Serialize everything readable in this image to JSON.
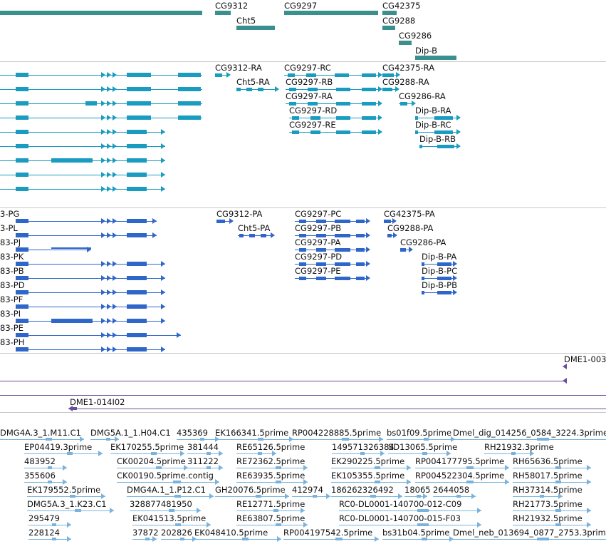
{
  "colors": {
    "gene": "#3a8f8f",
    "transcript": "#1a9cc0",
    "protein": "#2f66c9",
    "clone": "#6a4c9c",
    "est": "#79b3dd",
    "separator": "#c8c8c8"
  },
  "tracks": {
    "genes": {
      "items": [
        {
          "label": "CG9312"
        },
        {
          "label": "Cht5"
        },
        {
          "label": "CG9297"
        },
        {
          "label": "CG42375"
        },
        {
          "label": "CG9288"
        },
        {
          "label": "CG9286"
        },
        {
          "label": "Dip-B"
        }
      ]
    },
    "transcripts": {
      "items": [
        {
          "label": "CG9312-RA"
        },
        {
          "label": "Cht5-RA"
        },
        {
          "label": "CG9297-RC"
        },
        {
          "label": "CG9297-RB"
        },
        {
          "label": "CG9297-RA"
        },
        {
          "label": "CG9297-RD"
        },
        {
          "label": "CG9297-RE"
        },
        {
          "label": "CG42375-RA"
        },
        {
          "label": "CG9288-RA"
        },
        {
          "label": "CG9286-RA"
        },
        {
          "label": "Dip-B-RA"
        },
        {
          "label": "Dip-B-RC"
        },
        {
          "label": "Dip-B-RB"
        }
      ]
    },
    "proteins": {
      "items": [
        {
          "label": "3-PG"
        },
        {
          "label": "3-PL"
        },
        {
          "label": "83-PJ"
        },
        {
          "label": "83-PK"
        },
        {
          "label": "83-PB"
        },
        {
          "label": "83-PD"
        },
        {
          "label": "83-PF"
        },
        {
          "label": "83-PI"
        },
        {
          "label": "83-PE"
        },
        {
          "label": "83-PH"
        },
        {
          "label": "CG9312-PA"
        },
        {
          "label": "Cht5-PA"
        },
        {
          "label": "CG9297-PC"
        },
        {
          "label": "CG9297-PB"
        },
        {
          "label": "CG9297-PA"
        },
        {
          "label": "CG9297-PD"
        },
        {
          "label": "CG9297-PE"
        },
        {
          "label": "CG42375-PA"
        },
        {
          "label": "CG9288-PA"
        },
        {
          "label": "CG9286-PA"
        },
        {
          "label": "Dip-B-PA"
        },
        {
          "label": "Dip-B-PC"
        },
        {
          "label": "Dip-B-PB"
        }
      ]
    },
    "clones": {
      "items": [
        {
          "label": "DME1-003"
        },
        {
          "label": "DME1-014I02"
        }
      ]
    },
    "ests": {
      "items": [
        {
          "label": "DMG4A.3_1.M11.C1"
        },
        {
          "label": "DMG5A.1_1.H04.C1"
        },
        {
          "label": "435369"
        },
        {
          "label": "EK166341.5prime"
        },
        {
          "label": "RP004228885.5prime"
        },
        {
          "label": "bs01f09.5prime"
        },
        {
          "label": "Dmel_dig_014256_0584_3224.3prime"
        },
        {
          "label": "EP04419.3prime"
        },
        {
          "label": "EK170255.5prime"
        },
        {
          "label": "381444"
        },
        {
          "label": "RE65126.5prime"
        },
        {
          "label": "149571326384"
        },
        {
          "label": "SD13065.5prime"
        },
        {
          "label": "RH21932.3prime"
        },
        {
          "label": "483952"
        },
        {
          "label": "CK00204.5prime"
        },
        {
          "label": "311222"
        },
        {
          "label": "RE72362.5prime"
        },
        {
          "label": "EK290225.5prime"
        },
        {
          "label": "RP004177795.5prime"
        },
        {
          "label": "RH65636.5prime"
        },
        {
          "label": "355606"
        },
        {
          "label": "CK00190.5prime.contig"
        },
        {
          "label": "RE63935.5prime"
        },
        {
          "label": "EK105355.5prime"
        },
        {
          "label": "RP004522304.5prime"
        },
        {
          "label": "RH58017.5prime"
        },
        {
          "label": "EK179552.5prime"
        },
        {
          "label": "DMG4A.1_1.P12.C1"
        },
        {
          "label": "GH20076.5prime"
        },
        {
          "label": "412974"
        },
        {
          "label": "186262326492"
        },
        {
          "label": "18065"
        },
        {
          "label": "2644058"
        },
        {
          "label": "RH37314.5prime"
        },
        {
          "label": "DMG5A.3_1.K23.C1"
        },
        {
          "label": "328877481950"
        },
        {
          "label": "RE12771.5prime"
        },
        {
          "label": "RC0-DL0001-140700-012-C09"
        },
        {
          "label": "RH21773.5prime"
        },
        {
          "label": "295479"
        },
        {
          "label": "EK041513.5prime"
        },
        {
          "label": "RE63807.5prime"
        },
        {
          "label": "RC0-DL0001-140700-015-F03"
        },
        {
          "label": "RH21932.5prime"
        },
        {
          "label": "228124"
        },
        {
          "label": "37872"
        },
        {
          "label": "202826"
        },
        {
          "label": "EK048410.5prime"
        },
        {
          "label": "RP004197542.5prime"
        },
        {
          "label": "bs31b04.5prime"
        },
        {
          "label": "Dmel_neb_013694_0877_2753.3prime"
        }
      ]
    }
  }
}
